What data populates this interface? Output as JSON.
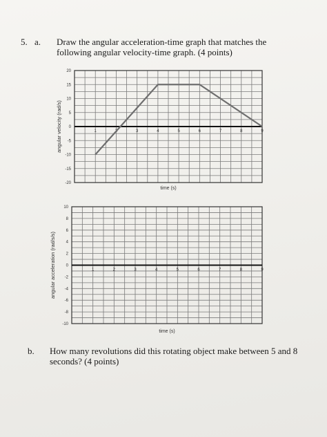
{
  "question": {
    "number": "5.",
    "part_a_label": "a.",
    "part_a_text": "Draw the angular acceleration-time graph that matches the following angular velocity-time graph. (4 points)",
    "part_b_label": "b.",
    "part_b_text": "How many revolutions did this rotating object make between 5 and 8 seconds? (4 points)"
  },
  "chart_data": [
    {
      "type": "line",
      "xlabel": "time (s)",
      "ylabel": "angular velocity (rad/s)",
      "ylim": [
        -20,
        20
      ],
      "xlim": [
        0,
        9
      ],
      "y_ticks": [
        20,
        15,
        10,
        5,
        0,
        -5,
        -10,
        -15,
        -20
      ],
      "x_tick_labels": [
        "1",
        "2",
        "3",
        "4",
        "5",
        "6",
        "7",
        "8",
        "9"
      ],
      "grid": true,
      "series": [
        {
          "x": [
            1,
            4,
            6,
            9
          ],
          "y": [
            -10,
            15,
            15,
            0
          ]
        }
      ]
    },
    {
      "type": "line",
      "xlabel": "time (s)",
      "ylabel": "angular acceleration (rad/s/s)",
      "ylim": [
        -10,
        10
      ],
      "xlim": [
        0,
        9
      ],
      "y_ticks": [
        10,
        8,
        6,
        4,
        2,
        0,
        -2,
        -4,
        -6,
        -8,
        -10
      ],
      "x_tick_labels": [
        "1",
        "2",
        "3",
        "4",
        "5",
        "6",
        "7",
        "8",
        "9"
      ],
      "grid": true,
      "series": []
    }
  ]
}
